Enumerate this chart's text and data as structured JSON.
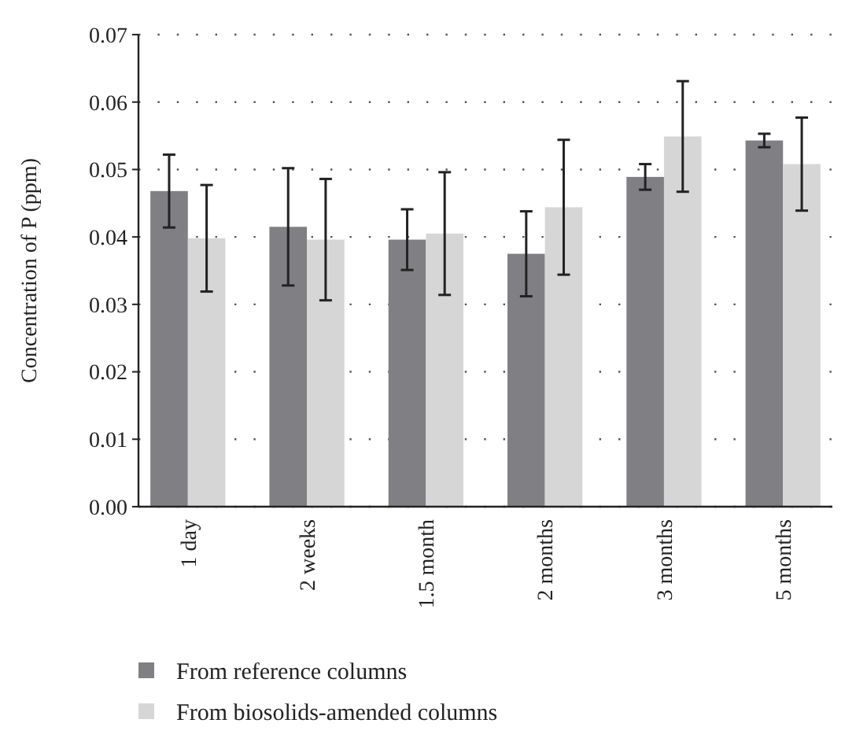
{
  "chart_data": {
    "type": "bar",
    "ylabel": "Concentration of P (ppm)",
    "categories": [
      "1 day",
      "2 weeks",
      "1.5 month",
      "2 months",
      "3 months",
      "5 months"
    ],
    "series": [
      {
        "name": "From reference columns",
        "color": "#808084",
        "values": [
          0.0468,
          0.0415,
          0.0396,
          0.0375,
          0.0489,
          0.0543
        ],
        "errors": [
          0.0054,
          0.0087,
          0.0045,
          0.0063,
          0.0019,
          0.001
        ]
      },
      {
        "name": "From biosolids-amended columns",
        "color": "#d6d6d6",
        "values": [
          0.0398,
          0.0396,
          0.0405,
          0.0444,
          0.0549,
          0.0508
        ],
        "errors": [
          0.0079,
          0.009,
          0.0091,
          0.01,
          0.0082,
          0.0069
        ]
      }
    ],
    "ylim": [
      0,
      0.07
    ],
    "yticks": [
      {
        "value": 0,
        "label": "0.00"
      },
      {
        "value": 0.01,
        "label": "0.01"
      },
      {
        "value": 0.02,
        "label": "0.02"
      },
      {
        "value": 0.03,
        "label": "0.03"
      },
      {
        "value": 0.04,
        "label": "0.04"
      },
      {
        "value": 0.05,
        "label": "0.05"
      },
      {
        "value": 0.06,
        "label": "0.06"
      },
      {
        "value": 0.07,
        "label": "0.07"
      }
    ],
    "grid": "y",
    "legend": "bottom left"
  }
}
